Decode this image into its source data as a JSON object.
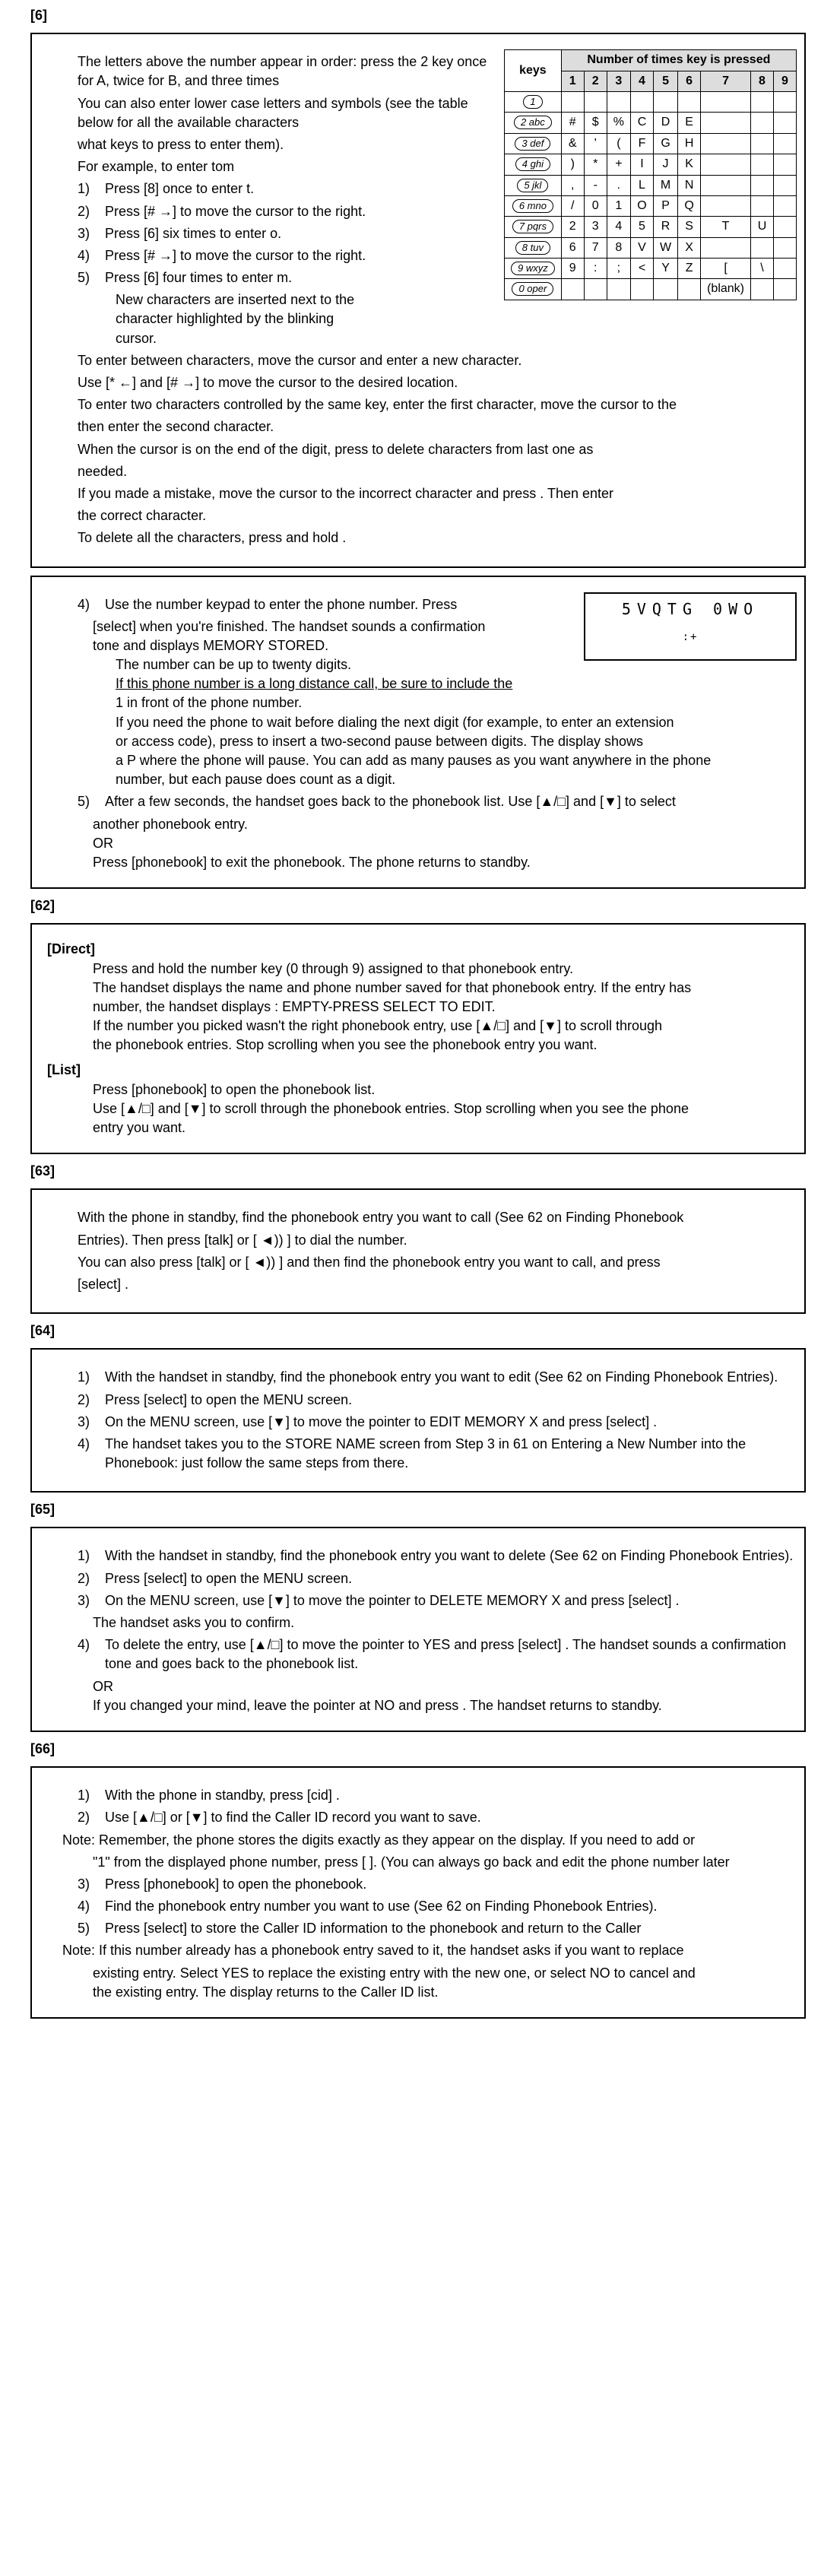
{
  "head1": "[6]",
  "intro1": "The letters above the number appear in order: press the 2 key once for A, twice for B, and three times",
  "intro2": "You can also enter lower case letters and symbols (see the table below for all the available characters",
  "intro3": "what keys to press to enter them).",
  "example": "For example, to enter tom",
  "s1n": "1)",
  "s1t": "Press [8] once to enter t.",
  "s2n": "2)",
  "s2t": "Press [# →] to move the cursor to the right.",
  "s3n": "3)",
  "s3t": "Press [6] six times to enter o.",
  "s4n": "4)",
  "s4t": "Press [# →] to move the cursor to the right.",
  "s5n": "5)",
  "s5t": "Press [6] four times to enter m.",
  "ins1": "New characters are inserted next to the",
  "ins2": "character highlighted by the blinking",
  "ins3": "cursor.",
  "mv1": "To enter between characters, move the cursor and enter a new character.",
  "mv2": "Use [* ←] and [# →] to move the cursor to the desired location.",
  "mv3": "To enter two characters controlled by the same key, enter the first character, move the cursor to the",
  "mv4": "then enter the second character.",
  "mv5": "When the cursor is on the end of the digit, press           to delete characters from last one as",
  "mv6": "needed.",
  "mv7": "If you made a mistake, move the cursor to the incorrect character and press           . Then enter",
  "mv8": "the correct character.",
  "mv9": "To delete all the characters, press and hold           .",
  "p4n": "4)",
  "p4a": "Use the number keypad to enter the phone number. Press",
  "p4b": "[select]     when you're finished. The handset sounds a confirmation",
  "p4c": "tone and displays MEMORY STORED.",
  "p4d": "The number can be up to twenty digits.",
  "p4e": "If this phone number is a long distance call, be sure to include the",
  "p4f": "1 in front of the phone number.",
  "p4g": "If you need the phone to wait before dialing the next digit (for example, to enter an extension",
  "p4h": "or access code), press           to insert a two-second pause between digits. The display shows",
  "p4i": "a P where the phone will pause. You can add as many pauses as you want anywhere in the phone",
  "p4j": "number, but each pause does count as a digit.",
  "p5n": "5)",
  "p5a": "After a few seconds, the handset goes back to the phonebook list. Use [▲/□] and [▼] to select",
  "p5b": "another phonebook entry.",
  "p5c": "OR",
  "p5d": "Press [phonebook]     to exit the phonebook. The phone returns to standby.",
  "h2": "[62]",
  "h2a": "[Direct]",
  "d1": "Press and hold the number key (0 through 9) assigned to that phonebook entry.",
  "d2": "The handset displays the name and phone number saved for that phonebook entry. If the entry has",
  "d3": "number, the handset displays : EMPTY-PRESS SELECT TO EDIT.",
  "d4": "If the number you picked wasn't the right phonebook entry, use [▲/□] and [▼] to scroll through",
  "d5": "the phonebook entries. Stop scrolling when you see the phonebook entry you want.",
  "h2b": "[List]",
  "l1": "Press [phonebook]     to open the phonebook list.",
  "l2": "Use [▲/□] and [▼] to scroll through the phonebook entries. Stop scrolling when you see the phone",
  "l3": "entry you want.",
  "h3": "[63]",
  "c1": "With the phone in standby, find the phonebook entry you want to call (See 62 on Finding Phonebook",
  "c2": "Entries). Then press [talk]     or [ ◄)) ] to dial the number.",
  "c3": "You can also press [talk]     or [ ◄)) ] and then find the phonebook entry you want to call, and press",
  "c4": "[select]     .",
  "h4": "[64]",
  "e1n": "1)",
  "e1": "With the handset in standby, find the phonebook entry you want to edit (See 62 on Finding Phonebook Entries).",
  "e2n": "2)",
  "e2": "Press [select]     to open the MENU screen.",
  "e3n": "3)",
  "e3": "On the MENU screen, use [▼] to move the pointer to EDIT MEMORY X and press [select]     .",
  "e4n": "4)",
  "e4": "The handset takes you to the STORE NAME screen from Step 3 in 61 on Entering a New Number into the Phonebook: just follow the same steps from there.",
  "h5": "[65]",
  "x1n": "1)",
  "x1": "With the handset in standby, find the phonebook entry you want to delete (See 62 on Finding Phonebook Entries).",
  "x2n": "2)",
  "x2": "Press [select]     to open the MENU screen.",
  "x3n": "3)",
  "x3": "On the MENU screen, use [▼] to move the pointer to DELETE MEMORY X and press [select]     .",
  "x3b": "The handset asks you to confirm.",
  "x4n": "4)",
  "x4": "To delete the entry, use [▲/□] to move the pointer to YES and press [select]     . The handset sounds a confirmation tone and goes back to the phonebook list.",
  "x4b": "OR",
  "x4c": "If you changed your mind, leave the pointer at NO and press           . The handset returns to standby.",
  "h6": "[66]",
  "r1n": "1)",
  "r1": "With the phone in standby, press [cid]     .",
  "r2n": "2)",
  "r2": "Use [▲/□] or [▼] to find the Caller ID record you want to save.",
  "note1": "Note: Remember, the phone stores the digits exactly as they appear on the display. If you need to add or",
  "note1b": "\"1\" from the displayed phone number, press [ ]. (You can always go back and edit the phone number later",
  "r3n": "3)",
  "r3": "Press [phonebook]     to open the phonebook.",
  "r4n": "4)",
  "r4": "Find the phonebook entry number you want to use (See 62 on Finding Phonebook Entries).",
  "r5n": "5)",
  "r5": "Press [select]     to store the Caller ID information to the phonebook and return to the Caller",
  "note2": "Note: If this number already has a phonebook entry saved to it, the handset asks if you want to replace",
  "note2b": "existing entry. Select YES to replace the existing entry with the new one, or select NO to cancel and",
  "note2c": "the existing entry. The display returns to the Caller ID list.",
  "table": {
    "title": "Number of times key is pressed",
    "cols": [
      "keys",
      "1",
      "2",
      "3",
      "4",
      "5",
      "6",
      "7",
      "8",
      "9"
    ],
    "rows": [
      {
        "key": "1",
        "cells": [
          "",
          "",
          "",
          "",
          "",
          "",
          "",
          "",
          ""
        ]
      },
      {
        "key": "2 abc",
        "cells": [
          "#",
          "$",
          "%",
          "C",
          "D",
          "E",
          "",
          "",
          ""
        ]
      },
      {
        "key": "3 def",
        "cells": [
          "&",
          "'",
          "(",
          "F",
          "G",
          "H",
          "",
          "",
          ""
        ]
      },
      {
        "key": "4 ghi",
        "cells": [
          ")",
          "*",
          "+",
          "I",
          "J",
          "K",
          "",
          "",
          ""
        ]
      },
      {
        "key": "5 jkl",
        "cells": [
          ",",
          "-",
          ".",
          "L",
          "M",
          "N",
          "",
          "",
          ""
        ]
      },
      {
        "key": "6 mno",
        "cells": [
          "/",
          "0",
          "1",
          "O",
          "P",
          "Q",
          "",
          "",
          ""
        ]
      },
      {
        "key": "7 pqrs",
        "cells": [
          "2",
          "3",
          "4",
          "5",
          "R",
          "S",
          "T",
          "U",
          ""
        ]
      },
      {
        "key": "8 tuv",
        "cells": [
          "6",
          "7",
          "8",
          "V",
          "W",
          "X",
          "",
          "",
          ""
        ]
      },
      {
        "key": "9 wxyz",
        "cells": [
          "9",
          ":",
          ";",
          "<",
          "Y",
          "Z",
          "[",
          "\\",
          ""
        ]
      },
      {
        "key": "0 oper",
        "cells": [
          "",
          "",
          "",
          "",
          "",
          "",
          "(blank)",
          "",
          ""
        ]
      }
    ]
  },
  "storebox": "5VQTG 0WO",
  "storebox2": " :+"
}
